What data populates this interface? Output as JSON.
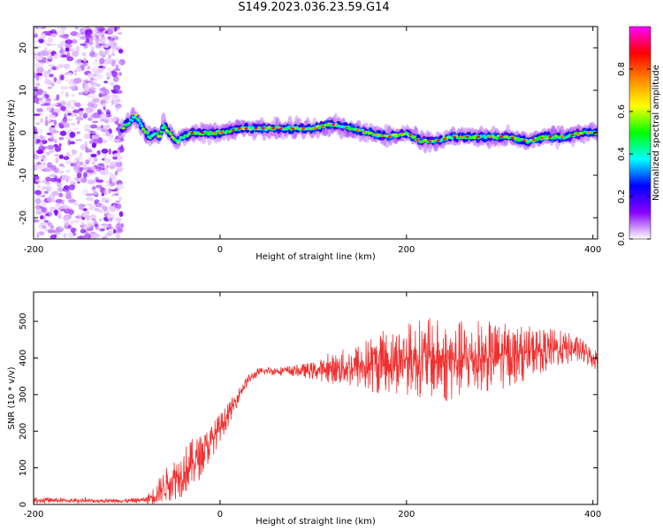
{
  "title": "S149.2023.036.23.59.G14",
  "chart_data": [
    {
      "type": "heatmap",
      "xlabel": "Height of straight line (km)",
      "ylabel": "Frequency (Hz)",
      "xlim": [
        -200,
        405
      ],
      "ylim": [
        -25,
        25
      ],
      "xticks": [
        -200,
        0,
        200,
        400
      ],
      "yticks": [
        -20,
        -10,
        0,
        10,
        20
      ],
      "colorbar": {
        "label": "Normalized spectral amplitude",
        "range": [
          0,
          1
        ],
        "ticks": [
          0.0,
          0.2,
          0.4,
          0.6,
          0.8
        ],
        "colormap": [
          "#ffffff",
          "#8800ff",
          "#0000ff",
          "#00ffff",
          "#00ff00",
          "#ffff00",
          "#ff8800",
          "#ff0000",
          "#ff00ff"
        ]
      },
      "noise_region_x": [
        -200,
        -105
      ],
      "ridge": {
        "x": [
          -105,
          -95,
          -90,
          -85,
          -80,
          -75,
          -70,
          -65,
          -60,
          -55,
          -50,
          -45,
          -40,
          -30,
          -20,
          0,
          20,
          50,
          80,
          100,
          120,
          140,
          160,
          180,
          200,
          215,
          230,
          250,
          270,
          290,
          310,
          330,
          350,
          370,
          390,
          405
        ],
        "freq": [
          1,
          3,
          4,
          2,
          0,
          -1,
          0,
          -1,
          2,
          0,
          -1,
          -2,
          -1,
          0,
          0,
          0,
          1,
          1,
          1,
          1,
          2,
          1,
          0,
          -1,
          0,
          -2,
          -2,
          -1,
          -1,
          -1,
          -1,
          -2,
          -1,
          -1,
          0,
          0
        ]
      }
    },
    {
      "type": "line",
      "xlabel": "Height of straight line (km)",
      "ylabel": "SNR (10 * v/v)",
      "xlim": [
        -200,
        405
      ],
      "ylim": [
        0,
        580
      ],
      "xticks": [
        -200,
        0,
        200,
        400
      ],
      "yticks": [
        0,
        100,
        200,
        300,
        400,
        500
      ],
      "series": [
        {
          "color": "#f03030",
          "x": [
            -200,
            -150,
            -100,
            -80,
            -70,
            -60,
            -50,
            -40,
            -30,
            -20,
            -10,
            0,
            10,
            20,
            30,
            40,
            50,
            60,
            80,
            100,
            120,
            140,
            160,
            180,
            200,
            220,
            240,
            260,
            280,
            300,
            320,
            340,
            360,
            380,
            390,
            400,
            405
          ],
          "snr": [
            12,
            10,
            10,
            12,
            25,
            50,
            70,
            90,
            110,
            135,
            170,
            210,
            250,
            300,
            340,
            360,
            365,
            365,
            365,
            365,
            370,
            375,
            380,
            390,
            400,
            400,
            390,
            395,
            400,
            405,
            410,
            420,
            425,
            425,
            415,
            400,
            395
          ],
          "spread": [
            8,
            6,
            6,
            8,
            30,
            45,
            60,
            70,
            70,
            60,
            50,
            40,
            30,
            20,
            15,
            12,
            12,
            12,
            15,
            25,
            40,
            60,
            80,
            90,
            100,
            110,
            120,
            110,
            100,
            95,
            80,
            65,
            55,
            40,
            35,
            30,
            30
          ]
        }
      ]
    }
  ]
}
